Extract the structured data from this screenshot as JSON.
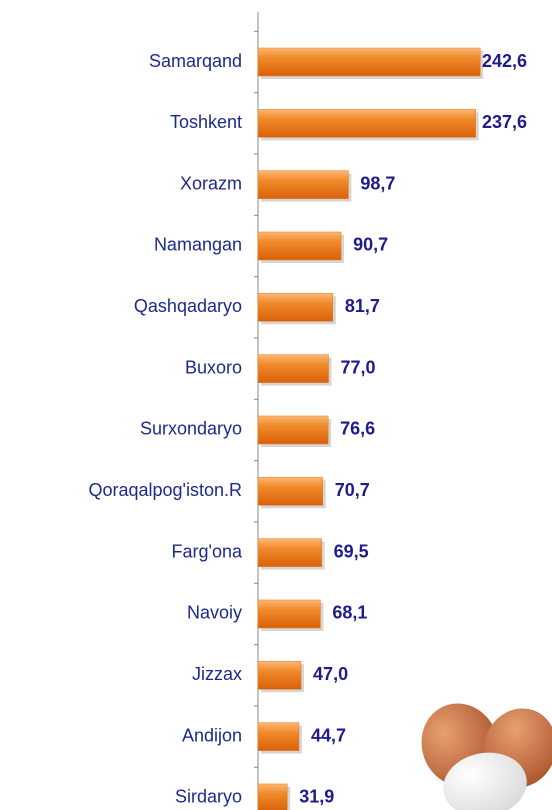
{
  "chart_data": {
    "type": "barh",
    "categories": [
      "Samarqand",
      "Toshkent",
      "Xorazm",
      "Namangan",
      "Qashqadaryo",
      "Buxoro",
      "Surxondaryo",
      "Qoraqalpog'iston.R",
      "Farg'ona",
      "Navoiy",
      "Jizzax",
      "Andijon",
      "Sirdaryo"
    ],
    "values": [
      242.6,
      237.6,
      98.7,
      90.7,
      81.7,
      77.0,
      76.6,
      70.7,
      69.5,
      68.1,
      47.0,
      44.7,
      31.9
    ],
    "value_labels": [
      "242,6",
      "237,6",
      "98,7",
      "90,7",
      "81,7",
      "77,0",
      "76,6",
      "70,7",
      "69,5",
      "68,1",
      "47,0",
      "44,7",
      "31,9"
    ],
    "color": "#ee7a12",
    "xlim": [
      0,
      250
    ]
  }
}
